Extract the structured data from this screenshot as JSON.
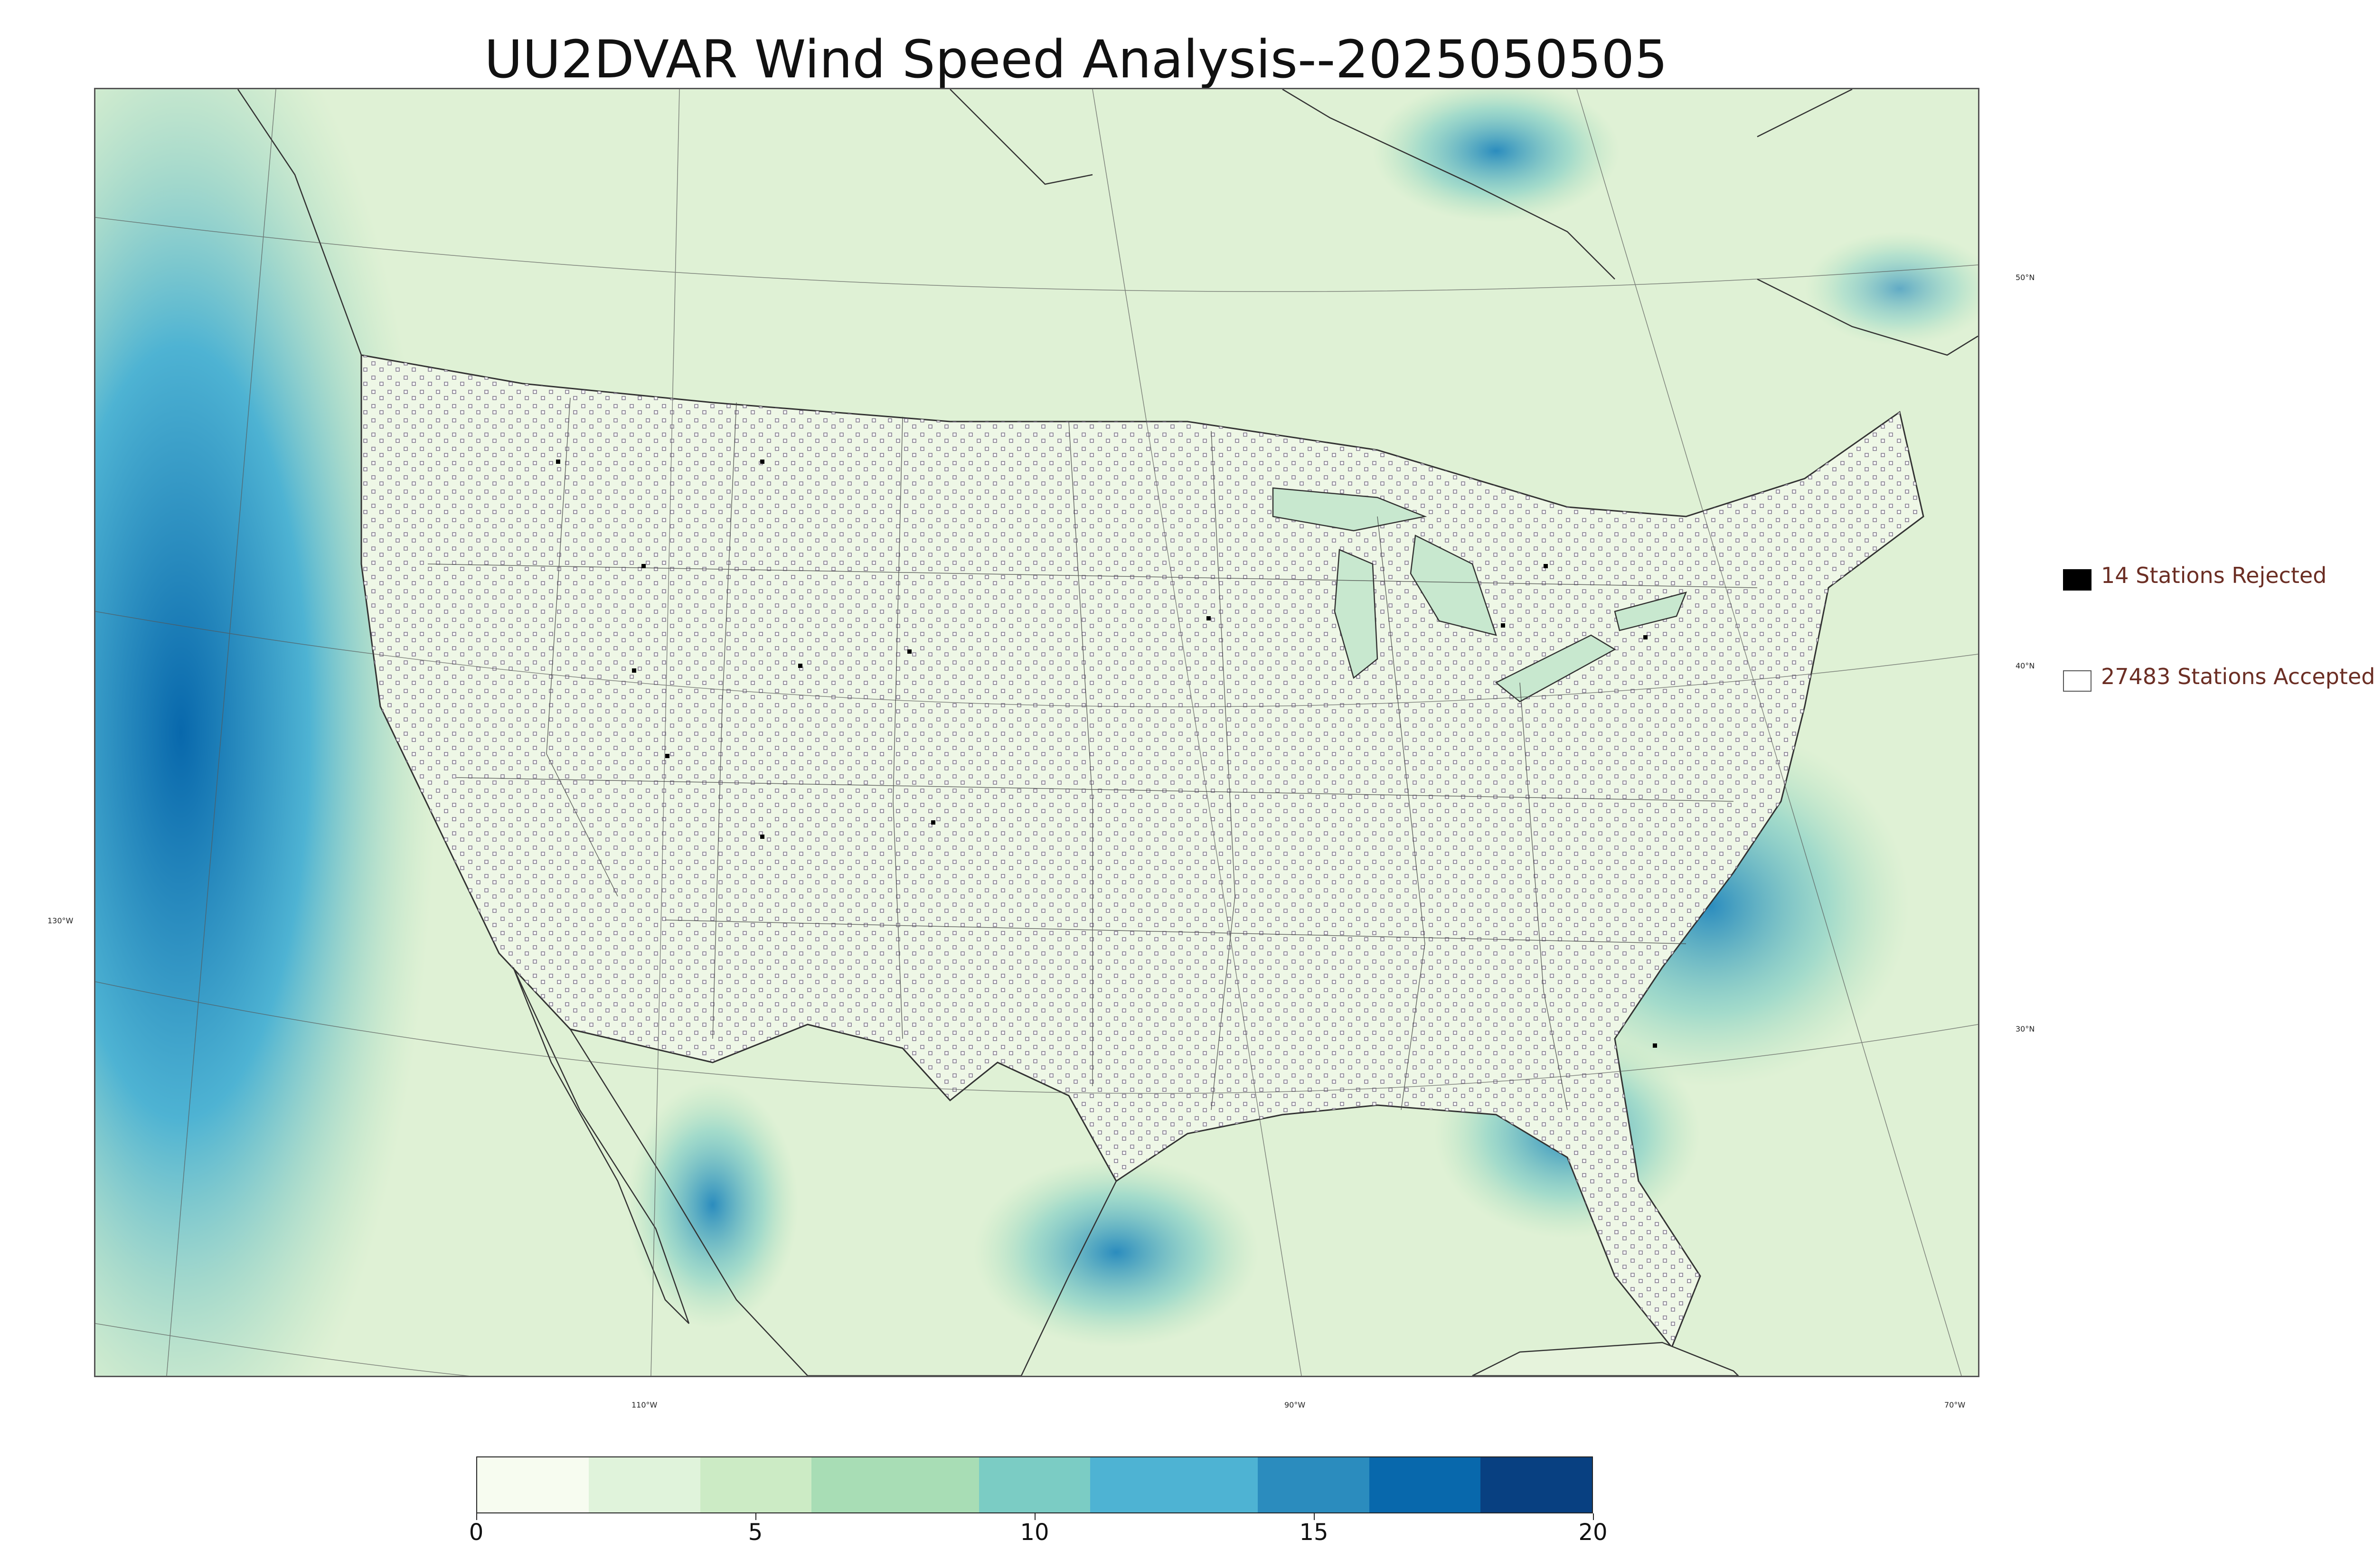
{
  "title": "UU2DVAR Wind Speed Analysis--2025050505",
  "map": {
    "lat_labels": [
      "50°N",
      "40°N",
      "30°N"
    ],
    "lon_labels": [
      "130°W",
      "110°W",
      "90°W",
      "70°W"
    ],
    "color_scale": [
      "#f7fcf0",
      "#e0f3db",
      "#ccebc5",
      "#a8ddb5",
      "#7bccc4",
      "#4eb3d3",
      "#2b8cbe",
      "#0868ac",
      "#084081"
    ],
    "rejected_color": "#000000",
    "accepted_color": "#ffffff"
  },
  "legend": {
    "rejected_label": "14 Stations Rejected",
    "accepted_label": "27483 Stations Accepted"
  },
  "colorbar": {
    "ticks": [
      "0",
      "5",
      "10",
      "15",
      "20"
    ],
    "min": 0,
    "max": 20
  }
}
